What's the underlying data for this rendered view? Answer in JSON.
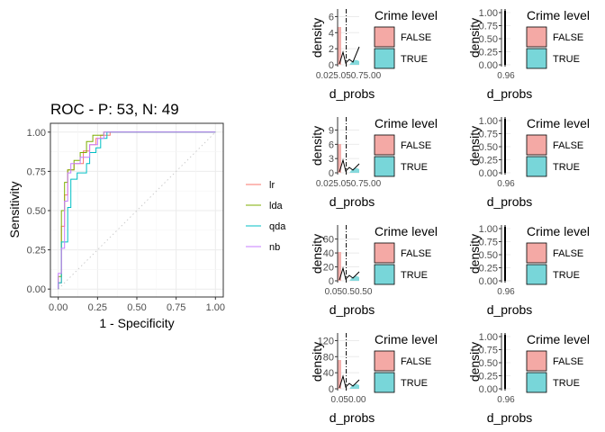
{
  "roc": {
    "title": "ROC - P: 53, N: 49",
    "xlabel": "1 - Specificity",
    "ylabel": "Sensitivity",
    "xticks": [
      "0.00",
      "0.25",
      "0.50",
      "0.75",
      "1.00"
    ],
    "yticks": [
      "0.00",
      "0.25",
      "0.50",
      "0.75",
      "1.00"
    ]
  },
  "density_panel": {
    "xlabel": "d_probs",
    "ylabel": "density",
    "legend_title": "Crime level",
    "legend_items": [
      {
        "label": "FALSE",
        "fill": "#f4a9a5",
        "stroke": "#000000"
      },
      {
        "label": "TRUE",
        "fill": "#78d6d9",
        "stroke": "#000000"
      }
    ],
    "threshold_line": "dot-dash vertical"
  },
  "colors": {
    "lr": "#f8766d",
    "lda": "#7cae00",
    "qda": "#00bfc4",
    "nb": "#c77cff",
    "grid": "#ebebeb",
    "panel_border": "#333333",
    "axis_text": "#4d4d4d",
    "diagonal": "#cccccc"
  },
  "chart_data": [
    {
      "type": "line",
      "title": "ROC - P: 53, N: 49",
      "xlabel": "1 - Specificity",
      "ylabel": "Sensitivity",
      "xlim": [
        0,
        1
      ],
      "ylim": [
        0,
        1
      ],
      "grid": true,
      "legend_placement": "right",
      "reference_line": {
        "style": "dotted",
        "x": [
          0,
          1
        ],
        "y": [
          0,
          1
        ]
      },
      "series": [
        {
          "name": "lr",
          "x": [
            0,
            0,
            0.02,
            0.02,
            0.04,
            0.04,
            0.06,
            0.06,
            0.1,
            0.1,
            0.16,
            0.16,
            0.2,
            0.2,
            0.24,
            0.24,
            0.27,
            0.27,
            0.33,
            0.33,
            1.0
          ],
          "y": [
            0,
            0.04,
            0.04,
            0.4,
            0.4,
            0.6,
            0.6,
            0.76,
            0.76,
            0.8,
            0.8,
            0.88,
            0.88,
            0.92,
            0.92,
            0.96,
            0.96,
            0.98,
            0.98,
            1.0,
            1.0
          ]
        },
        {
          "name": "lda",
          "x": [
            0,
            0,
            0.02,
            0.02,
            0.04,
            0.04,
            0.06,
            0.06,
            0.1,
            0.1,
            0.14,
            0.14,
            0.18,
            0.18,
            0.22,
            0.22,
            0.29,
            0.29,
            1.0
          ],
          "y": [
            0,
            0.08,
            0.08,
            0.5,
            0.5,
            0.68,
            0.68,
            0.76,
            0.76,
            0.82,
            0.82,
            0.87,
            0.87,
            0.94,
            0.94,
            0.98,
            0.98,
            1.0,
            1.0
          ]
        },
        {
          "name": "qda",
          "x": [
            0,
            0,
            0.02,
            0.02,
            0.06,
            0.06,
            0.08,
            0.08,
            0.12,
            0.12,
            0.18,
            0.18,
            0.2,
            0.2,
            0.24,
            0.24,
            0.27,
            0.27,
            0.31,
            0.31,
            1.0
          ],
          "y": [
            0,
            0.04,
            0.04,
            0.3,
            0.3,
            0.52,
            0.52,
            0.7,
            0.7,
            0.74,
            0.74,
            0.8,
            0.8,
            0.87,
            0.87,
            0.9,
            0.9,
            0.96,
            0.96,
            1.0,
            1.0
          ]
        },
        {
          "name": "nb",
          "x": [
            0,
            0,
            0.02,
            0.02,
            0.04,
            0.04,
            0.06,
            0.06,
            0.08,
            0.08,
            0.14,
            0.14,
            0.2,
            0.2,
            0.25,
            0.25,
            0.29,
            0.29,
            1.0
          ],
          "y": [
            0,
            0.1,
            0.1,
            0.26,
            0.26,
            0.56,
            0.56,
            0.74,
            0.74,
            0.8,
            0.8,
            0.84,
            0.84,
            0.92,
            0.92,
            0.96,
            0.96,
            1.0,
            1.0
          ]
        }
      ]
    },
    {
      "type": "area",
      "row": 1,
      "col": 1,
      "xlabel": "d_probs",
      "ylabel": "density",
      "yticks": [
        "0",
        "2",
        "4",
        "6"
      ],
      "ylim": [
        0,
        6.5
      ],
      "xtick_text": "0.025.050.75.00",
      "legend_title": "Crime level"
    },
    {
      "type": "area",
      "row": 1,
      "col": 2,
      "xlabel": "d_probs",
      "ylabel": "density",
      "yticks": [
        "0.00",
        "0.25",
        "0.50",
        "0.75",
        "1.00"
      ],
      "ylim": [
        0,
        1
      ],
      "xtick_text": "0.96",
      "legend_title": "Crime level"
    },
    {
      "type": "area",
      "row": 2,
      "col": 1,
      "xlabel": "d_probs",
      "ylabel": "density",
      "yticks": [
        "0",
        "3",
        "6",
        "9"
      ],
      "ylim": [
        0,
        11
      ],
      "xtick_text": "0.025.050.75.00",
      "legend_title": "Crime level"
    },
    {
      "type": "area",
      "row": 2,
      "col": 2,
      "xlabel": "d_probs",
      "ylabel": "density",
      "yticks": [
        "0.00",
        "0.25",
        "0.50",
        "0.75",
        "1.00"
      ],
      "ylim": [
        0,
        1
      ],
      "xtick_text": "0.96",
      "legend_title": "Crime level"
    },
    {
      "type": "area",
      "row": 3,
      "col": 1,
      "xlabel": "d_probs",
      "ylabel": "density",
      "yticks": [
        "0",
        "20",
        "40",
        "60"
      ],
      "ylim": [
        0,
        75
      ],
      "xtick_text": "0.050.50.50",
      "legend_title": "Crime level"
    },
    {
      "type": "area",
      "row": 3,
      "col": 2,
      "xlabel": "d_probs",
      "ylabel": "density",
      "yticks": [
        "0.00",
        "0.25",
        "0.50",
        "0.75",
        "1.00"
      ],
      "ylim": [
        0,
        1
      ],
      "xtick_text": "0.96",
      "legend_title": "Crime level"
    },
    {
      "type": "area",
      "row": 4,
      "col": 1,
      "xlabel": "d_probs",
      "ylabel": "density",
      "yticks": [
        "0",
        "40",
        "80",
        "120"
      ],
      "ylim": [
        0,
        130
      ],
      "xtick_text": "0.050.00",
      "legend_title": "Crime level"
    },
    {
      "type": "area",
      "row": 4,
      "col": 2,
      "xlabel": "d_probs",
      "ylabel": "density",
      "yticks": [
        "0.00",
        "0.25",
        "0.50",
        "0.75",
        "1.00"
      ],
      "ylim": [
        0,
        1
      ],
      "xtick_text": "0.96",
      "legend_title": "Crime level"
    }
  ]
}
